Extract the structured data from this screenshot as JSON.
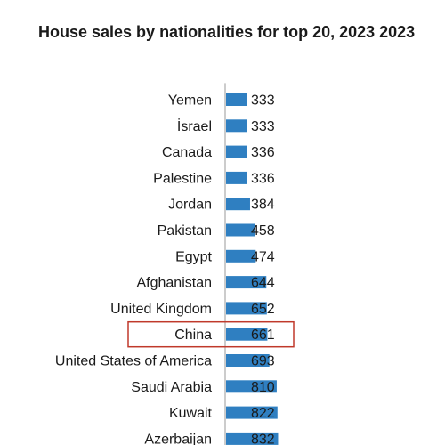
{
  "chart_data": {
    "type": "bar",
    "orientation": "horizontal",
    "title": "House sales by nationalities for top 20, 2023 2023",
    "categories": [
      "Yemen",
      "İsrael",
      "Canada",
      "Palestine",
      "Jordan",
      "Pakistan",
      "Egypt",
      "Afghanistan",
      "United Kingdom",
      "China",
      "United States of America",
      "Saudi Arabia",
      "Kuwait",
      "Azerbaijan"
    ],
    "values": [
      333,
      333,
      336,
      336,
      384,
      458,
      474,
      644,
      652,
      661,
      693,
      810,
      822,
      832
    ],
    "value_labels": [
      "333",
      "333",
      "336",
      "336",
      "384",
      "458",
      "474",
      "644",
      "652",
      "661",
      "693",
      "810",
      "822",
      "832"
    ],
    "highlighted_category": "China",
    "xlim": [
      0,
      3700
    ],
    "bar_color": "#2f7fc1",
    "highlight_color": "#c0392b",
    "grid": false,
    "legend": "none"
  }
}
